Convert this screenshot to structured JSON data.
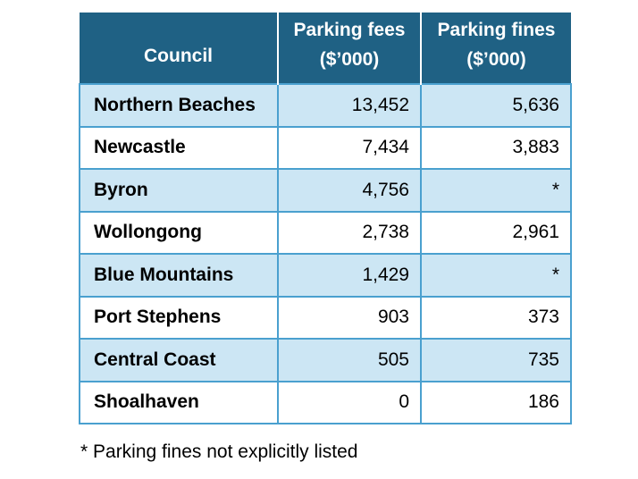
{
  "table": {
    "headers": {
      "council": "Council",
      "fees_line1": "Parking fees",
      "fees_line2": "($’000)",
      "fines_line1": "Parking fines",
      "fines_line2": "($’000)"
    },
    "rows": [
      {
        "council": "Northern Beaches",
        "fees": "13,452",
        "fines": "5,636"
      },
      {
        "council": "Newcastle",
        "fees": "7,434",
        "fines": "3,883"
      },
      {
        "council": "Byron",
        "fees": "4,756",
        "fines": "*"
      },
      {
        "council": "Wollongong",
        "fees": "2,738",
        "fines": "2,961"
      },
      {
        "council": "Blue Mountains",
        "fees": "1,429",
        "fines": "*"
      },
      {
        "council": "Port Stephens",
        "fees": "903",
        "fines": "373"
      },
      {
        "council": "Central Coast",
        "fees": "505",
        "fines": "735"
      },
      {
        "council": "Shoalhaven",
        "fees": "0",
        "fines": "186"
      }
    ]
  },
  "footnote": "* Parking fines not explicitly listed",
  "colors": {
    "header_bg": "#1f6184",
    "row_shade": "#cce6f4",
    "border": "#4aa0cf"
  }
}
